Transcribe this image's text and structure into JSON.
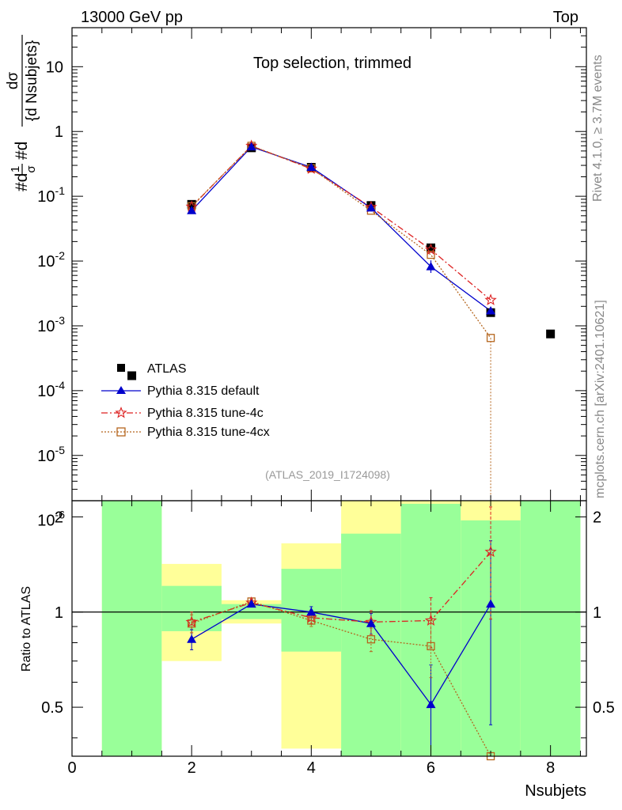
{
  "header": {
    "left": "13000 GeV pp",
    "right": "Top"
  },
  "side_labels": {
    "rivet": "Rivet 4.1.0, ≥ 3.7M events",
    "mcplots": "mcplots.cern.ch [arXiv:2401.10621]"
  },
  "chart_data": [
    {
      "type": "scatter",
      "title": "Top selection, trimmed",
      "analysis": "(ATLAS_2019_I1724098)",
      "xlabel": "Nsubjets",
      "ylabel": "#d1/σ #d dσ/{d Nsubjets}",
      "ylabel_parts": {
        "p1": "#d",
        "one": "1",
        "sigma": "σ",
        "p2": "#d",
        "dsigma": "dσ",
        "denom": "{d Nsubjets}"
      },
      "yscale": "log",
      "xlim": [
        0,
        8.6
      ],
      "ylim": [
        2e-06,
        40
      ],
      "y_tick_labels": [
        {
          "value": 10,
          "base": "10",
          "exp": ""
        },
        {
          "value": 1,
          "base": "1",
          "exp": ""
        },
        {
          "value": 0.1,
          "base": "10",
          "exp": "-1"
        },
        {
          "value": 0.01,
          "base": "10",
          "exp": "-2"
        },
        {
          "value": 0.001,
          "base": "10",
          "exp": "-3"
        },
        {
          "value": 0.0001,
          "base": "10",
          "exp": "-4"
        },
        {
          "value": 1e-05,
          "base": "10",
          "exp": "-5"
        },
        {
          "value": 1e-06,
          "base": "10",
          "exp": "-6"
        }
      ],
      "series": [
        {
          "name": "ATLAS",
          "color": "#000000",
          "marker": "square-filled",
          "line": "none",
          "x": [
            1,
            2,
            3,
            4,
            5,
            6,
            7,
            8
          ],
          "y": [
            0.00017,
            0.075,
            0.56,
            0.28,
            0.072,
            0.016,
            0.0016,
            0.00075
          ]
        },
        {
          "name": "Pythia 8.315 default",
          "color": "#0000cc",
          "marker": "triangle-filled",
          "line": "solid",
          "x": [
            2,
            3,
            4,
            5,
            6,
            7
          ],
          "y": [
            0.06,
            0.58,
            0.28,
            0.066,
            0.0082,
            0.0017
          ]
        },
        {
          "name": "Pythia 8.315 tune-4c",
          "color": "#dd2222",
          "marker": "star-open",
          "line": "dashdot",
          "x": [
            2,
            3,
            4,
            5,
            6,
            7
          ],
          "y": [
            0.069,
            0.6,
            0.265,
            0.068,
            0.015,
            0.0025
          ]
        },
        {
          "name": "Pythia 8.315 tune-4cx",
          "color": "#b5651d",
          "marker": "square-open",
          "line": "dotted",
          "x": [
            2,
            3,
            4,
            5,
            6,
            7
          ],
          "y": [
            0.07,
            0.6,
            0.27,
            0.06,
            0.0125,
            0.00065
          ]
        }
      ],
      "legend_position": "lower-left"
    },
    {
      "type": "scatter",
      "ylabel": "Ratio to ATLAS",
      "xlabel": "Nsubjets",
      "xlim": [
        0,
        8.6
      ],
      "ylim": [
        0.35,
        2.25
      ],
      "x_ticks": [
        0,
        2,
        4,
        6,
        8
      ],
      "y_ticks": [
        0.5,
        1,
        2
      ],
      "reference_line": 1,
      "bands": [
        {
          "x": [
            0.5,
            1.5
          ],
          "yellow": [
            0.35,
            2.25
          ],
          "green": [
            0.35,
            2.25
          ]
        },
        {
          "x": [
            1.5,
            2.5
          ],
          "yellow": [
            0.7,
            1.42
          ],
          "green": [
            0.87,
            1.21
          ]
        },
        {
          "x": [
            2.5,
            3.5
          ],
          "yellow": [
            0.92,
            1.09
          ],
          "green": [
            0.95,
            1.06
          ]
        },
        {
          "x": [
            3.5,
            4.5
          ],
          "yellow": [
            0.37,
            1.65
          ],
          "green": [
            0.75,
            1.37
          ]
        },
        {
          "x": [
            4.5,
            5.5
          ],
          "yellow": [
            0.35,
            2.25
          ],
          "green": [
            0.35,
            1.77
          ]
        },
        {
          "x": [
            5.5,
            6.5
          ],
          "yellow": [
            0.35,
            2.25
          ],
          "green": [
            0.35,
            2.2
          ]
        },
        {
          "x": [
            6.5,
            7.5
          ],
          "yellow": [
            0.35,
            2.25
          ],
          "green": [
            0.35,
            1.95
          ]
        },
        {
          "x": [
            7.5,
            8.5
          ],
          "yellow": [
            0.35,
            2.25
          ],
          "green": [
            0.35,
            2.25
          ]
        }
      ],
      "series": [
        {
          "name": "Pythia 8.315 default",
          "color": "#0000cc",
          "x": [
            2,
            3,
            4,
            5,
            6,
            7
          ],
          "y": [
            0.82,
            1.06,
            1.0,
            0.92,
            0.51,
            1.06
          ],
          "err": [
            0.06,
            0.02,
            0.04,
            0.07,
            0.17,
            0.62
          ]
        },
        {
          "name": "Pythia 8.315 tune-4c",
          "color": "#dd2222",
          "x": [
            2,
            3,
            4,
            5,
            6,
            7
          ],
          "y": [
            0.93,
            1.07,
            0.96,
            0.93,
            0.94,
            1.55
          ],
          "err": [
            0.07,
            0.02,
            0.04,
            0.08,
            0.17,
            0.6
          ]
        },
        {
          "name": "Pythia 8.315 tune-4cx",
          "color": "#b5651d",
          "x": [
            2,
            3,
            4,
            5,
            6,
            7
          ],
          "y": [
            0.92,
            1.08,
            0.94,
            0.82,
            0.78,
            0.35
          ],
          "err": [
            0.06,
            0.02,
            0.04,
            0.07,
            0.16,
            0.0
          ]
        }
      ]
    }
  ]
}
